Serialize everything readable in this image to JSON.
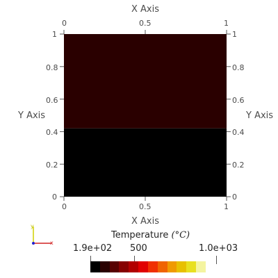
{
  "chart_data": {
    "type": "heatmap",
    "xlabel": "X Axis",
    "ylabel": "Y Axis",
    "xlim": [
      0,
      1
    ],
    "ylim": [
      0,
      1
    ],
    "x_ticks": [
      "0",
      "0.5",
      "1"
    ],
    "y_ticks": [
      "0",
      "0.2",
      "0.4",
      "0.6",
      "0.8",
      "1"
    ],
    "regions": [
      {
        "x": [
          0,
          1
        ],
        "y": [
          0.42,
          1
        ],
        "color": "#2a0000"
      },
      {
        "x": [
          0,
          1
        ],
        "y": [
          0,
          0.42
        ],
        "color": "#000000"
      }
    ]
  },
  "colorbar": {
    "title": "Temperature",
    "unit": "(°C)",
    "min_label": "1.9e+02",
    "mid_label": "500",
    "max_label": "1.0e+03",
    "min": 190,
    "mid": 500,
    "max": 1000,
    "colors": [
      "#000000",
      "#2a0000",
      "#580000",
      "#860000",
      "#b20000",
      "#e10000",
      "#f03000",
      "#f06400",
      "#f09a00",
      "#e8c000",
      "#e8e020",
      "#f4f4a0"
    ]
  },
  "orientation": {
    "x_label": "x",
    "y_label": "y",
    "x_color": "#d02020",
    "y_color": "#d0d000",
    "z_color": "#2020d0"
  }
}
